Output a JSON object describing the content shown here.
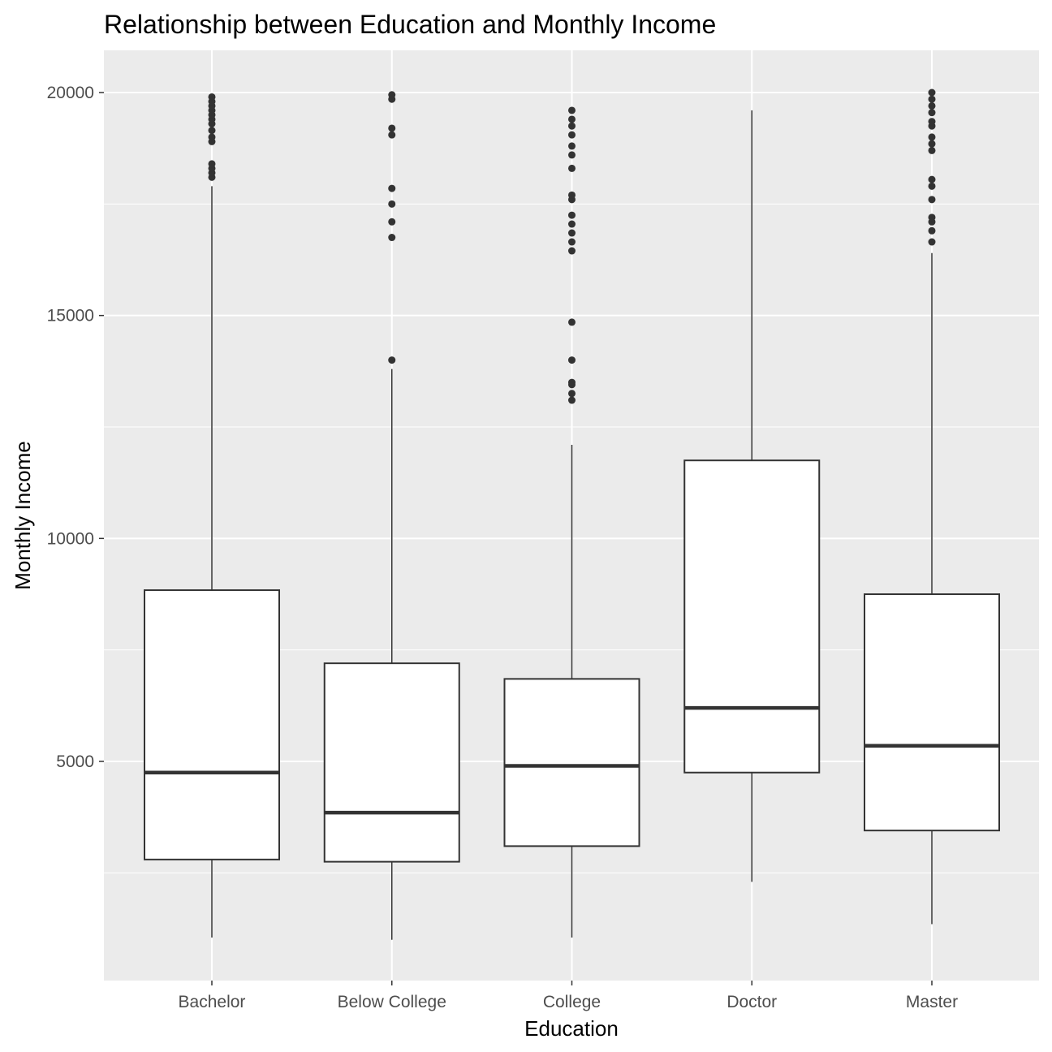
{
  "chart_data": {
    "type": "boxplot",
    "title": "Relationship between Education and Monthly Income",
    "xlabel": "Education",
    "ylabel": "Monthly Income",
    "categories": [
      "Bachelor",
      "Below College",
      "College",
      "Doctor",
      "Master"
    ],
    "ylim": [
      0,
      21000
    ],
    "yticks": [
      5000,
      10000,
      15000,
      20000
    ],
    "grid": true,
    "legend": "none",
    "colors": {
      "panel_background": "#ebebeb",
      "grid": "#ffffff",
      "box_fill": "#ffffff",
      "box_line": "#333333",
      "outlier": "#333333"
    },
    "boxes": [
      {
        "category": "Bachelor",
        "whisker_low": 1050,
        "q1": 2800,
        "median": 4750,
        "q3": 8840,
        "whisker_high": 17900,
        "outliers": [
          18100,
          18200,
          18300,
          18400,
          18900,
          19000,
          19150,
          19300,
          19400,
          19500,
          19600,
          19700,
          19800,
          19900
        ]
      },
      {
        "category": "Below College",
        "whisker_low": 1000,
        "q1": 2750,
        "median": 3850,
        "q3": 7200,
        "whisker_high": 13800,
        "outliers": [
          14000,
          16750,
          17100,
          17500,
          17850,
          19050,
          19200,
          19850,
          19950
        ]
      },
      {
        "category": "College",
        "whisker_low": 1050,
        "q1": 3100,
        "median": 4900,
        "q3": 6850,
        "whisker_high": 12100,
        "outliers": [
          13100,
          13250,
          13450,
          13500,
          14000,
          14850,
          16450,
          16650,
          16850,
          17050,
          17250,
          17600,
          17700,
          18300,
          18600,
          18800,
          19050,
          19250,
          19400,
          19600
        ]
      },
      {
        "category": "Doctor",
        "whisker_low": 2300,
        "q1": 4750,
        "median": 6200,
        "q3": 11750,
        "whisker_high": 19600,
        "outliers": []
      },
      {
        "category": "Master",
        "whisker_low": 1350,
        "q1": 3450,
        "median": 5350,
        "q3": 8750,
        "whisker_high": 16400,
        "outliers": [
          16650,
          16900,
          17100,
          17200,
          17600,
          17900,
          18050,
          18700,
          18850,
          19000,
          19250,
          19350,
          19550,
          19700,
          19850,
          20000
        ]
      }
    ]
  }
}
